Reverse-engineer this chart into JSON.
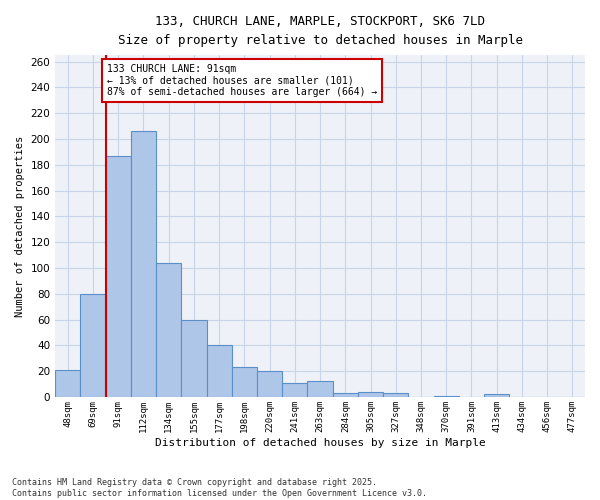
{
  "title1": "133, CHURCH LANE, MARPLE, STOCKPORT, SK6 7LD",
  "title2": "Size of property relative to detached houses in Marple",
  "xlabel": "Distribution of detached houses by size in Marple",
  "ylabel": "Number of detached properties",
  "categories": [
    "48sqm",
    "69sqm",
    "91sqm",
    "112sqm",
    "134sqm",
    "155sqm",
    "177sqm",
    "198sqm",
    "220sqm",
    "241sqm",
    "263sqm",
    "284sqm",
    "305sqm",
    "327sqm",
    "348sqm",
    "370sqm",
    "391sqm",
    "413sqm",
    "434sqm",
    "456sqm",
    "477sqm"
  ],
  "values": [
    21,
    80,
    187,
    206,
    104,
    60,
    40,
    23,
    20,
    11,
    12,
    3,
    4,
    3,
    0,
    1,
    0,
    2,
    0,
    0,
    0
  ],
  "bar_color": "#aec6e8",
  "bar_edge_color": "#5b8fc9",
  "grid_color": "#c8d4e8",
  "bg_color": "#eef2f8",
  "vline_x_index": 2,
  "vline_color": "#cc0000",
  "annotation_text": "133 CHURCH LANE: 91sqm\n← 13% of detached houses are smaller (101)\n87% of semi-detached houses are larger (664) →",
  "annotation_box_color": "#cc0000",
  "footer": "Contains HM Land Registry data © Crown copyright and database right 2025.\nContains public sector information licensed under the Open Government Licence v3.0.",
  "ylim": [
    0,
    265
  ],
  "yticks": [
    0,
    20,
    40,
    60,
    80,
    100,
    120,
    140,
    160,
    180,
    200,
    220,
    240,
    260
  ]
}
